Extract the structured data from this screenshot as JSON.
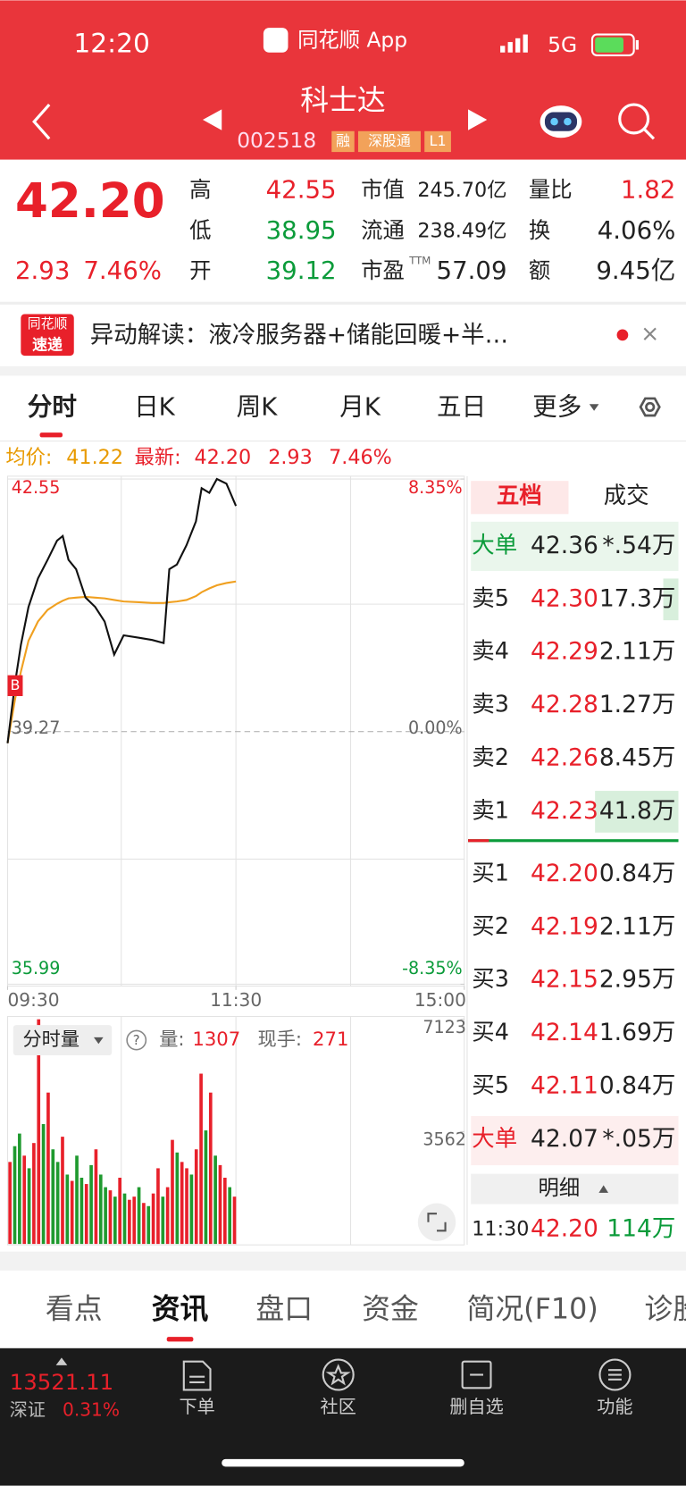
{
  "status": {
    "time": "12:20",
    "app": "同花顺 App",
    "network": "5G"
  },
  "header": {
    "title": "科士达",
    "code": "002518",
    "tags": [
      "融",
      "深股通",
      "L1"
    ]
  },
  "quote": {
    "price": "42.20",
    "change": "2.93",
    "change_pct": "7.46%",
    "stats": [
      {
        "label": "高",
        "value": "42.55"
      },
      {
        "label": "低",
        "value": "38.95"
      },
      {
        "label": "开",
        "value": "39.12"
      },
      {
        "label": "市值",
        "value": "245.70亿"
      },
      {
        "label": "流通",
        "value": "238.49亿"
      },
      {
        "label": "市盈",
        "value": "57.09",
        "note": "TTM"
      },
      {
        "label": "量比",
        "value": "1.82"
      },
      {
        "label": "换",
        "value": "4.06%"
      },
      {
        "label": "额",
        "value": "9.45亿"
      }
    ]
  },
  "news": {
    "logo": [
      "同花顺",
      "速递"
    ],
    "text": "异动解读：液冷服务器+储能回暖+半…"
  },
  "tabs": [
    "分时",
    "日K",
    "周K",
    "月K",
    "五日",
    "更多"
  ],
  "info": {
    "avg_label": "均价:",
    "avg": "41.22",
    "latest_label": "最新:",
    "latest": "42.20",
    "change": "2.93",
    "change_pct": "7.46%"
  },
  "chart_data": [
    {
      "type": "line",
      "marker": "B",
      "xlim": [
        0,
        240
      ],
      "xticks": [
        {
          "value": 0,
          "label": "09:30"
        },
        {
          "value": 120,
          "label": "11:30"
        },
        {
          "value": 240,
          "label": "15:00"
        }
      ],
      "ylim": [
        35.99,
        42.55
      ],
      "yticks": [
        42.55,
        39.27,
        35.99
      ],
      "y2lim": [
        -8.35,
        8.35
      ],
      "y2ticks": [
        {
          "value": 8.35,
          "label": "8.35%"
        },
        {
          "value": 0,
          "label": "0.00%"
        },
        {
          "value": -8.35,
          "label": "-8.35%"
        }
      ],
      "x": [
        0,
        4,
        7,
        11,
        16,
        21,
        26,
        29,
        32,
        36,
        41,
        46,
        51,
        56,
        61,
        69,
        76,
        82,
        85,
        89,
        94,
        99,
        102,
        106,
        110,
        115,
        120
      ],
      "series": [
        {
          "color": "#111111",
          "values": [
            39.12,
            39.91,
            40.4,
            40.89,
            41.26,
            41.5,
            41.75,
            41.81,
            41.5,
            41.38,
            41.01,
            40.89,
            40.7,
            40.27,
            40.52,
            40.49,
            40.46,
            40.42,
            41.38,
            41.44,
            41.69,
            42.0,
            42.43,
            42.37,
            42.55,
            42.49,
            42.2
          ]
        },
        {
          "color": "#f0a020",
          "values": [
            39.12,
            39.7,
            40.05,
            40.45,
            40.7,
            40.85,
            40.93,
            40.97,
            41.0,
            41.01,
            41.02,
            41.01,
            41.0,
            40.98,
            40.96,
            40.95,
            40.94,
            40.94,
            40.95,
            40.96,
            40.98,
            41.03,
            41.08,
            41.13,
            41.17,
            41.2,
            41.22
          ]
        }
      ]
    },
    {
      "type": "bar",
      "title": "分时量",
      "ylim": [
        0,
        7123
      ],
      "yticks": [
        7123,
        3562
      ],
      "values": [
        2600,
        3100,
        3500,
        2800,
        2400,
        3200,
        7123,
        3800,
        4800,
        3000,
        2600,
        3400,
        2200,
        2000,
        2800,
        2100,
        1900,
        2500,
        3000,
        2200,
        1800,
        1700,
        1500,
        2100,
        1600,
        1400,
        1500,
        1800,
        1300,
        1200,
        1600,
        2400,
        1500,
        1800,
        3300,
        2900,
        2600,
        2400,
        2200,
        3000,
        5400,
        3600,
        4800,
        2800,
        2500,
        2100,
        1800,
        1500
      ],
      "colors": [
        "#e8202a",
        "#1f9a2f",
        "#1f9a2f",
        "#e8202a",
        "#1f9a2f",
        "#e8202a",
        "#e8202a",
        "#1f9a2f",
        "#e8202a",
        "#1f9a2f",
        "#1f9a2f",
        "#e8202a",
        "#1f9a2f",
        "#e8202a",
        "#1f9a2f",
        "#1f9a2f",
        "#e8202a",
        "#1f9a2f",
        "#e8202a",
        "#1f9a2f",
        "#1f9a2f",
        "#e8202a",
        "#1f9a2f",
        "#e8202a",
        "#1f9a2f",
        "#e8202a",
        "#e8202a",
        "#1f9a2f",
        "#e8202a",
        "#1f9a2f",
        "#e8202a",
        "#e8202a",
        "#1f9a2f",
        "#e8202a",
        "#e8202a",
        "#1f9a2f",
        "#e8202a",
        "#e8202a",
        "#1f9a2f",
        "#e8202a",
        "#e8202a",
        "#1f9a2f",
        "#e8202a",
        "#1f9a2f",
        "#e8202a",
        "#e8202a",
        "#1f9a2f",
        "#e8202a"
      ]
    }
  ],
  "volume_info": {
    "help": "?",
    "volume_label": "量:",
    "volume": "1307",
    "hand_label": "现手:",
    "hand": "271"
  },
  "order_book": {
    "tabs": [
      "五档",
      "成交"
    ],
    "rows": [
      {
        "label": "大单",
        "price": "42.36",
        "volume": "*.54万"
      },
      {
        "label": "卖5",
        "price": "42.30",
        "volume": "17.3万"
      },
      {
        "label": "卖4",
        "price": "42.29",
        "volume": "2.11万"
      },
      {
        "label": "卖3",
        "price": "42.28",
        "volume": "1.27万"
      },
      {
        "label": "卖2",
        "price": "42.26",
        "volume": "8.45万"
      },
      {
        "label": "卖1",
        "price": "42.23",
        "volume": "41.8万"
      },
      {
        "label": "买1",
        "price": "42.20",
        "volume": "0.84万"
      },
      {
        "label": "买2",
        "price": "42.19",
        "volume": "2.11万"
      },
      {
        "label": "买3",
        "price": "42.15",
        "volume": "2.95万"
      },
      {
        "label": "买4",
        "price": "42.14",
        "volume": "1.69万"
      },
      {
        "label": "买5",
        "price": "42.11",
        "volume": "0.84万"
      },
      {
        "label": "大单",
        "price": "42.07",
        "volume": "*.05万"
      }
    ],
    "detail": "明细",
    "trade": {
      "time": "11:30",
      "price": "42.20",
      "volume": "114万"
    }
  },
  "section_tabs": [
    "看点",
    "资讯",
    "盘口",
    "资金",
    "简况(F10)",
    "诊股"
  ],
  "footer": {
    "index": {
      "value": "13521.11",
      "name": "深证",
      "pct": "0.31%"
    },
    "nav": [
      "下单",
      "社区",
      "删自选",
      "功能"
    ]
  }
}
